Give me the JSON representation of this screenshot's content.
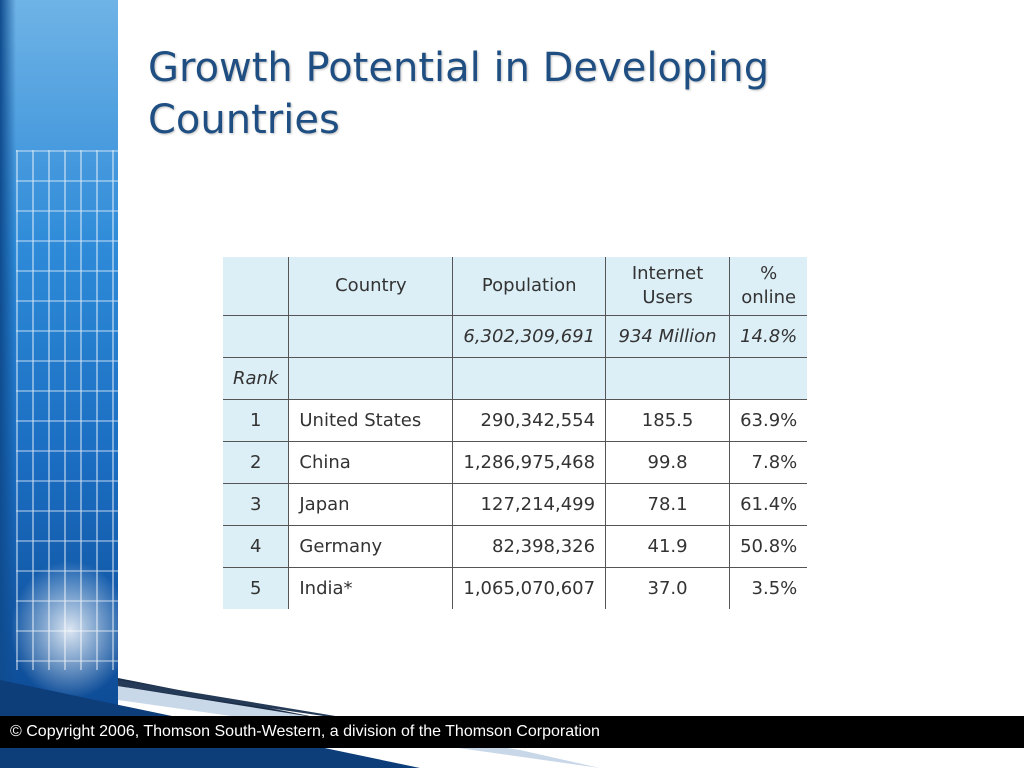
{
  "slide": {
    "title": "Growth Potential in Developing Countries",
    "footer": "© Copyright 2006, Thomson South-Western, a division of the Thomson Corporation"
  },
  "table": {
    "headers": [
      "",
      "Country",
      "Population",
      "Internet\nUsers",
      "%\nonline"
    ],
    "world": {
      "population": "6,302,309,691",
      "users": "934 Million",
      "pct": "14.8%"
    },
    "rank_label": "Rank",
    "rows": [
      {
        "rank": "1",
        "country": "United States",
        "population": "290,342,554",
        "users": "185.5",
        "pct": "63.9%"
      },
      {
        "rank": "2",
        "country": "China",
        "population": "1,286,975,468",
        "users": "99.8",
        "pct": "7.8%"
      },
      {
        "rank": "3",
        "country": "Japan",
        "population": "127,214,499",
        "users": "78.1",
        "pct": "61.4%"
      },
      {
        "rank": "4",
        "country": "Germany",
        "population": "82,398,326",
        "users": "41.9",
        "pct": "50.8%"
      },
      {
        "rank": "5",
        "country": "India*",
        "population": "1,065,070,607",
        "users": "37.0",
        "pct": "3.5%"
      }
    ]
  }
}
